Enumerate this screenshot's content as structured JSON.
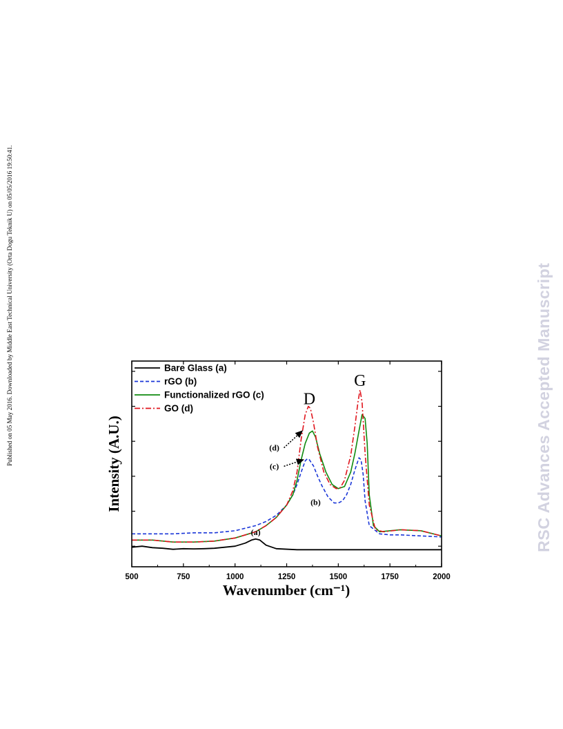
{
  "page": {
    "side_note": "Published on 05 May 2016. Downloaded by Middle East Technical University (Orta Dogu Teknik U) on 05/05/2016 19:50:41.",
    "watermark": "RSC Advances Accepted Manuscript"
  },
  "chart_data": {
    "type": "line",
    "title": "",
    "xlabel": "Wavenumber (cm⁻¹)",
    "ylabel": "Intensity (A.U.)",
    "xlim": [
      500,
      2000
    ],
    "ylim": [
      0,
      1
    ],
    "xticks": [
      500,
      750,
      1000,
      1250,
      1500,
      1750,
      2000
    ],
    "yticks_labeled": false,
    "grid": false,
    "legend_position": "top-left",
    "series": [
      {
        "name": "Bare Glass (a)",
        "color": "#000000",
        "dash": "solid",
        "x": [
          500,
          550,
          600,
          650,
          700,
          750,
          800,
          850,
          900,
          950,
          1000,
          1050,
          1080,
          1100,
          1120,
          1150,
          1200,
          1300,
          1400,
          1500,
          1600,
          1700,
          1800,
          1900,
          2000
        ],
        "y": [
          0.095,
          0.1,
          0.093,
          0.09,
          0.085,
          0.088,
          0.087,
          0.088,
          0.09,
          0.095,
          0.1,
          0.115,
          0.13,
          0.135,
          0.13,
          0.105,
          0.088,
          0.083,
          0.083,
          0.083,
          0.083,
          0.083,
          0.083,
          0.083,
          0.083
        ]
      },
      {
        "name": "rGO (b)",
        "color": "#1a36d8",
        "dash": "dashed",
        "x": [
          500,
          600,
          700,
          800,
          900,
          1000,
          1100,
          1150,
          1200,
          1250,
          1280,
          1300,
          1320,
          1340,
          1350,
          1360,
          1380,
          1400,
          1420,
          1450,
          1480,
          1500,
          1520,
          1540,
          1560,
          1580,
          1600,
          1610,
          1620,
          1630,
          1650,
          1700,
          1750,
          1800,
          1900,
          2000
        ],
        "y": [
          0.16,
          0.16,
          0.16,
          0.165,
          0.165,
          0.175,
          0.2,
          0.22,
          0.25,
          0.3,
          0.35,
          0.4,
          0.46,
          0.515,
          0.525,
          0.52,
          0.49,
          0.44,
          0.395,
          0.34,
          0.31,
          0.31,
          0.32,
          0.35,
          0.4,
          0.47,
          0.53,
          0.52,
          0.45,
          0.32,
          0.2,
          0.16,
          0.155,
          0.155,
          0.15,
          0.145
        ]
      },
      {
        "name": "Functionalized rGO (c)",
        "color": "#0f8a0f",
        "dash": "solid",
        "x": [
          500,
          600,
          700,
          800,
          900,
          1000,
          1100,
          1150,
          1200,
          1250,
          1280,
          1300,
          1320,
          1340,
          1360,
          1375,
          1390,
          1410,
          1440,
          1470,
          1500,
          1530,
          1560,
          1580,
          1600,
          1615,
          1630,
          1640,
          1650,
          1670,
          1700,
          1750,
          1800,
          1900,
          2000
        ],
        "y": [
          0.13,
          0.13,
          0.12,
          0.12,
          0.125,
          0.14,
          0.17,
          0.2,
          0.24,
          0.3,
          0.35,
          0.42,
          0.52,
          0.6,
          0.65,
          0.66,
          0.63,
          0.55,
          0.46,
          0.4,
          0.38,
          0.39,
          0.46,
          0.55,
          0.66,
          0.74,
          0.72,
          0.6,
          0.35,
          0.2,
          0.17,
          0.175,
          0.18,
          0.175,
          0.15
        ]
      },
      {
        "name": "GO (d)",
        "color": "#e0141c",
        "dash": "dash-dot",
        "x": [
          500,
          600,
          700,
          800,
          900,
          1000,
          1100,
          1150,
          1200,
          1250,
          1280,
          1300,
          1320,
          1340,
          1355,
          1365,
          1380,
          1400,
          1430,
          1460,
          1490,
          1510,
          1530,
          1560,
          1580,
          1595,
          1605,
          1615,
          1630,
          1650,
          1680,
          1720,
          1800,
          1900,
          2000
        ],
        "y": [
          0.13,
          0.13,
          0.12,
          0.12,
          0.125,
          0.14,
          0.17,
          0.2,
          0.24,
          0.3,
          0.37,
          0.46,
          0.62,
          0.74,
          0.78,
          0.77,
          0.7,
          0.58,
          0.46,
          0.4,
          0.38,
          0.385,
          0.42,
          0.54,
          0.68,
          0.8,
          0.86,
          0.8,
          0.55,
          0.3,
          0.18,
          0.17,
          0.18,
          0.175,
          0.15
        ]
      }
    ],
    "annotations": [
      {
        "text": "D",
        "x": 1360,
        "y": 0.79,
        "style": "serif-large"
      },
      {
        "text": "G",
        "x": 1605,
        "y": 0.88,
        "style": "serif-large"
      },
      {
        "text": "(a)",
        "x": 1100,
        "y": 0.155,
        "style": "label"
      },
      {
        "text": "(b)",
        "x": 1390,
        "y": 0.3,
        "style": "label"
      },
      {
        "text": "(c)",
        "x": 1190,
        "y": 0.475,
        "style": "label",
        "arrow_to": [
          1330,
          0.52
        ]
      },
      {
        "text": "(d)",
        "x": 1190,
        "y": 0.565,
        "style": "label",
        "arrow_to": [
          1325,
          0.66
        ]
      }
    ]
  }
}
